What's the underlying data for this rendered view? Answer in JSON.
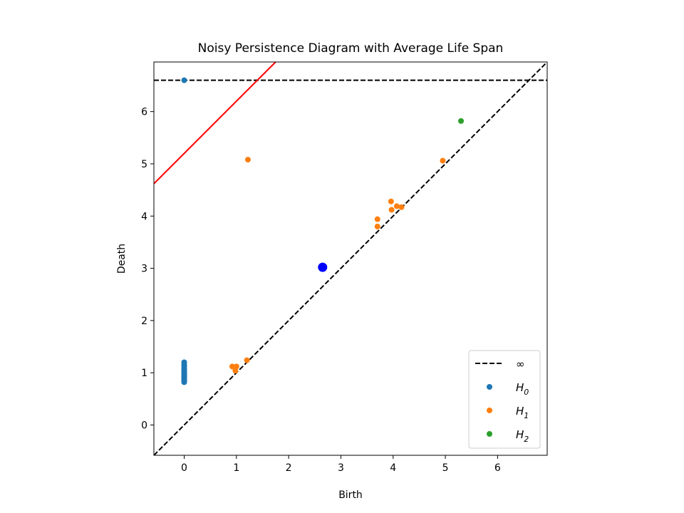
{
  "chart_data": {
    "type": "scatter",
    "title": "Noisy Persistence Diagram with Average Life Span",
    "xlabel": "Birth",
    "ylabel": "Death",
    "xlim": [
      -0.58,
      6.95
    ],
    "ylim": [
      -0.58,
      6.95
    ],
    "xticks": [
      0,
      1,
      2,
      3,
      4,
      5,
      6
    ],
    "yticks": [
      0,
      1,
      2,
      3,
      4,
      5,
      6
    ],
    "infinity_level": 6.6,
    "infinity_label": "∞",
    "red_line": {
      "slope": 1,
      "intercept": 5.2
    },
    "average_point": {
      "birth": 2.65,
      "death": 3.02
    },
    "colors": {
      "H0": "#1f77b4",
      "H1": "#ff7f0e",
      "H2": "#2ca02c",
      "average": "#0000ff",
      "red_line": "#ff0000",
      "diagonal": "#000000"
    },
    "legend": {
      "location": "lower right",
      "entries": [
        {
          "key": "inf",
          "label": "∞"
        },
        {
          "key": "H0",
          "label": "H",
          "sub": "0"
        },
        {
          "key": "H1",
          "label": "H",
          "sub": "1"
        },
        {
          "key": "H2",
          "label": "H",
          "sub": "2"
        }
      ]
    },
    "series": [
      {
        "name": "H0",
        "points": [
          [
            0,
            6.6
          ],
          [
            0,
            0.82
          ],
          [
            0,
            0.84
          ],
          [
            0,
            0.86
          ],
          [
            0,
            0.88
          ],
          [
            0,
            0.9
          ],
          [
            0,
            0.92
          ],
          [
            0,
            0.94
          ],
          [
            0,
            0.96
          ],
          [
            0,
            0.98
          ],
          [
            0,
            1.0
          ],
          [
            0,
            1.02
          ],
          [
            0,
            1.05
          ],
          [
            0,
            1.08
          ],
          [
            0,
            1.12
          ],
          [
            0,
            1.16
          ],
          [
            0,
            1.2
          ]
        ]
      },
      {
        "name": "H1",
        "points": [
          [
            0.92,
            1.12
          ],
          [
            0.97,
            1.1
          ],
          [
            1.0,
            1.12
          ],
          [
            0.98,
            1.04
          ],
          [
            1.2,
            1.24
          ],
          [
            1.22,
            5.08
          ],
          [
            3.7,
            3.94
          ],
          [
            3.7,
            3.8
          ],
          [
            3.96,
            4.28
          ],
          [
            3.97,
            4.12
          ],
          [
            4.07,
            4.19
          ],
          [
            4.16,
            4.17
          ],
          [
            4.95,
            5.06
          ]
        ]
      },
      {
        "name": "H2",
        "points": [
          [
            5.3,
            5.82
          ]
        ]
      }
    ]
  }
}
